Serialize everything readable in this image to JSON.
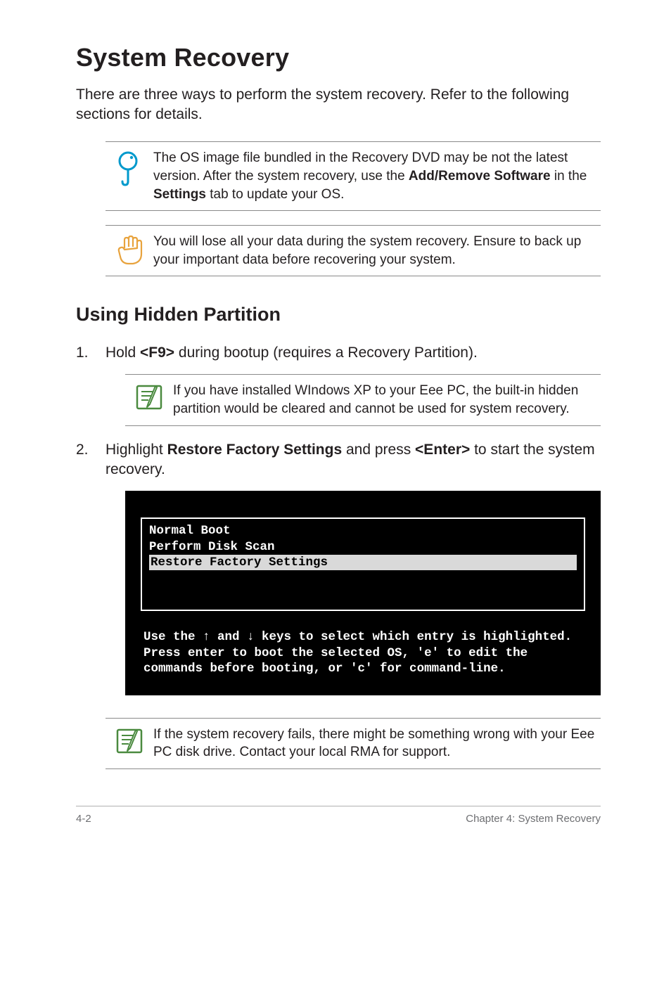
{
  "heading": "System Recovery",
  "intro": "There are three ways to perform the system recovery. Refer to the following sections for details.",
  "callout_tip_parts": [
    "The OS image file bundled in the Recovery DVD may be not the latest version. After the system recovery, use the ",
    "Add/Remove Software",
    " in the ",
    "Settings",
    " tab to update your OS."
  ],
  "callout_warn": "You will lose all your data during the system recovery. Ensure to back up your important data before recovering your system.",
  "subheading": "Using Hidden Partition",
  "step1_parts": [
    "Hold ",
    "<F9>",
    " during bootup (requires a Recovery Partition)."
  ],
  "callout_note1": "If you have installed WIndows XP to your Eee PC, the built-in hidden partition would be cleared and cannot be used for system recovery.",
  "step2_parts": [
    "Highlight ",
    "Restore Factory Settings",
    " and press ",
    "<Enter>",
    " to start the system recovery."
  ],
  "boot": {
    "line1": "Normal Boot",
    "line2": "Perform Disk Scan",
    "line3": "Restore Factory Settings",
    "help1": "Use the ↑ and ↓ keys to select which entry is highlighted.",
    "help2": "Press enter to boot the selected OS, 'e' to edit the",
    "help3": "commands before booting, or 'c' for command-line."
  },
  "callout_note2": "If the system recovery fails, there might be something wrong with your Eee PC disk drive. Contact your local RMA for support.",
  "footer_left": "4-2",
  "footer_right": "Chapter 4: System Recovery",
  "colors": {
    "icon_tip": "#0099cc",
    "icon_warn": "#e8a33d",
    "icon_note": "#4a8a3f"
  }
}
